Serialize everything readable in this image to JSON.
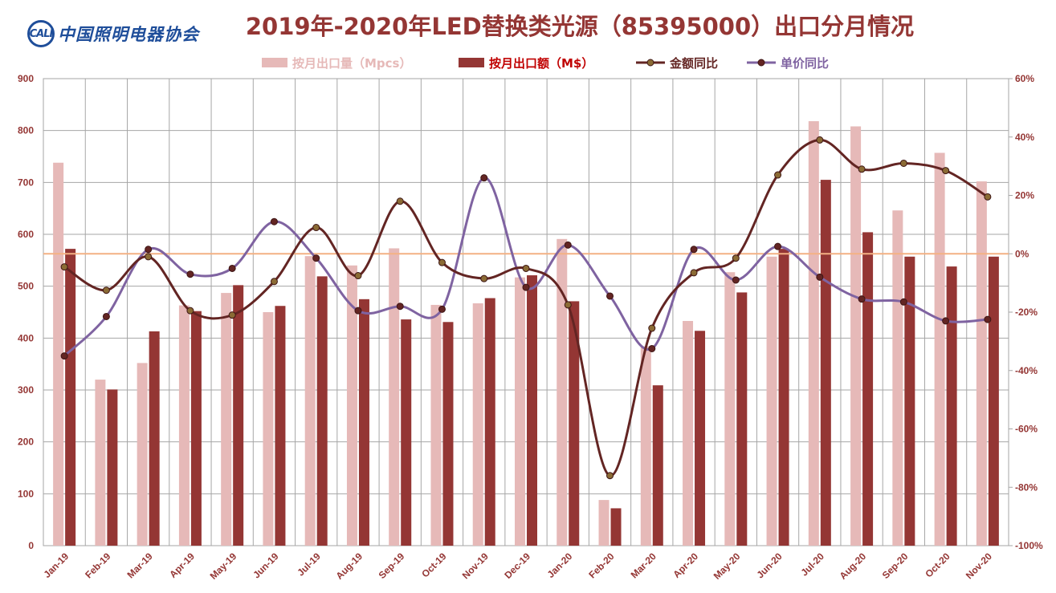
{
  "logo": {
    "mark": "CALI",
    "text": "中国照明电器协会"
  },
  "chart_data": {
    "type": "bar",
    "title": "2019年-2020年LED替换类光源（85395000）出口分月情况",
    "categories": [
      "Jan-19",
      "Feb-19",
      "Mar-19",
      "Apr-19",
      "May-19",
      "Jun-19",
      "Jul-19",
      "Aug-19",
      "Sep-19",
      "Oct-19",
      "Nov-19",
      "Dec-19",
      "Jan-20",
      "Feb-20",
      "Mar-20",
      "Apr-20",
      "May-20",
      "Jun-20",
      "Jul-20",
      "Aug-20",
      "Sep-20",
      "Oct-20",
      "Nov-20"
    ],
    "y_left": {
      "ylim": [
        0,
        900
      ],
      "ticks": [
        "0",
        "100",
        "200",
        "300",
        "400",
        "500",
        "600",
        "700",
        "800",
        "900"
      ]
    },
    "y_right": {
      "ylim": [
        -100,
        60
      ],
      "unit": "%",
      "ticks": [
        "-100%",
        "-80%",
        "-60%",
        "-40%",
        "-20%",
        "0%",
        "20%",
        "40%",
        "60%"
      ]
    },
    "reference_line": {
      "value": 0,
      "axis": "right",
      "color": "#f4b183"
    },
    "grid": true,
    "legend_position": "top-center",
    "series": [
      {
        "name": "按月出口量（Mpcs）",
        "type": "bar",
        "axis": "left",
        "color": "#e6b9b8",
        "values": [
          738,
          320,
          352,
          463,
          487,
          450,
          558,
          540,
          573,
          464,
          467,
          517,
          591,
          88,
          384,
          433,
          527,
          557,
          818,
          808,
          646,
          757,
          702
        ]
      },
      {
        "name": "按月出口额（M$）",
        "type": "bar",
        "axis": "left",
        "color": "#943634",
        "values": [
          572,
          301,
          413,
          452,
          502,
          462,
          519,
          475,
          436,
          431,
          477,
          521,
          471,
          72,
          309,
          414,
          488,
          572,
          705,
          604,
          557,
          538,
          557
        ]
      },
      {
        "name": "金额同比",
        "type": "line",
        "axis": "right",
        "color": "#632523",
        "values": [
          -4.5,
          -12.5,
          -1,
          -19.5,
          -21,
          -9.5,
          9,
          -7.5,
          18,
          -3,
          -8.5,
          -5,
          -17.5,
          -76,
          -25.5,
          -6.5,
          -1.5,
          27,
          39,
          29,
          31,
          28.5,
          19.5
        ]
      },
      {
        "name": "单价同比",
        "type": "line",
        "axis": "right",
        "color": "#7f63a1",
        "values": [
          -35,
          -21.5,
          1.5,
          -7,
          -5,
          11,
          -1.5,
          -19.5,
          -18,
          -19,
          26,
          -11.5,
          3,
          -14.5,
          -32.5,
          1.5,
          -9,
          2.5,
          -8,
          -15.5,
          -16.5,
          -23,
          -22.5
        ]
      }
    ]
  }
}
